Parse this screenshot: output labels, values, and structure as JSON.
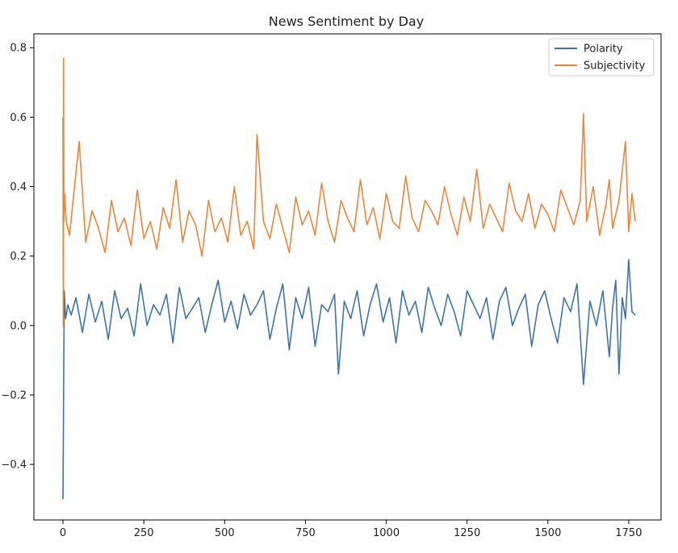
{
  "chart_data": {
    "type": "line",
    "title": "News Sentiment by Day",
    "xlabel": "",
    "ylabel": "",
    "xlim": [
      -90,
      1850
    ],
    "ylim": [
      -0.56,
      0.84
    ],
    "x_ticks": [
      0,
      250,
      500,
      750,
      1000,
      1250,
      1500,
      1750
    ],
    "y_ticks": [
      -0.4,
      -0.2,
      0.0,
      0.2,
      0.4,
      0.6,
      0.8
    ],
    "x_tick_labels": [
      "0",
      "250",
      "500",
      "750",
      "1000",
      "1250",
      "1500",
      "1750"
    ],
    "y_tick_labels": [
      "−0.4",
      "−0.2",
      "0.0",
      "0.2",
      "0.4",
      "0.6",
      "0.8"
    ],
    "grid": false,
    "legend_position": "top-right",
    "series": [
      {
        "name": "Polarity",
        "color": "#3b75af",
        "x": [
          0,
          2,
          4,
          8,
          15,
          25,
          40,
          60,
          80,
          100,
          120,
          140,
          160,
          180,
          200,
          220,
          240,
          260,
          280,
          300,
          320,
          340,
          360,
          380,
          400,
          420,
          440,
          460,
          480,
          500,
          520,
          540,
          560,
          580,
          600,
          620,
          640,
          660,
          680,
          700,
          720,
          740,
          760,
          780,
          800,
          820,
          840,
          852,
          870,
          890,
          910,
          930,
          950,
          970,
          990,
          1010,
          1030,
          1050,
          1070,
          1090,
          1110,
          1130,
          1150,
          1170,
          1190,
          1210,
          1230,
          1250,
          1270,
          1290,
          1310,
          1330,
          1350,
          1370,
          1390,
          1410,
          1430,
          1450,
          1470,
          1490,
          1510,
          1530,
          1550,
          1570,
          1590,
          1610,
          1630,
          1650,
          1670,
          1690,
          1700,
          1710,
          1720,
          1730,
          1740,
          1750,
          1760,
          1770
        ],
        "values": [
          -0.5,
          -0.2,
          0.1,
          0.02,
          0.06,
          0.03,
          0.08,
          -0.02,
          0.09,
          0.01,
          0.07,
          -0.04,
          0.1,
          0.02,
          0.05,
          -0.03,
          0.12,
          0.0,
          0.06,
          0.03,
          0.09,
          -0.05,
          0.11,
          0.02,
          0.05,
          0.08,
          -0.02,
          0.06,
          0.13,
          0.01,
          0.07,
          -0.01,
          0.09,
          0.03,
          0.06,
          0.1,
          -0.04,
          0.05,
          0.12,
          -0.07,
          0.08,
          0.02,
          0.11,
          -0.06,
          0.06,
          0.04,
          0.09,
          -0.14,
          0.07,
          0.02,
          0.1,
          -0.03,
          0.06,
          0.12,
          0.01,
          0.08,
          -0.05,
          0.1,
          0.03,
          0.07,
          -0.02,
          0.11,
          0.05,
          0.0,
          0.09,
          0.04,
          -0.03,
          0.1,
          0.06,
          0.02,
          0.08,
          -0.04,
          0.07,
          0.11,
          0.0,
          0.05,
          0.09,
          -0.06,
          0.06,
          0.1,
          0.02,
          -0.05,
          0.08,
          0.04,
          0.12,
          -0.17,
          0.07,
          0.0,
          0.1,
          -0.09,
          0.05,
          0.13,
          -0.14,
          0.08,
          0.02,
          0.19,
          0.04,
          0.03
        ]
      },
      {
        "name": "Subjectivity",
        "color": "#ef8636",
        "x": [
          0,
          1,
          2,
          3,
          5,
          10,
          20,
          30,
          50,
          70,
          90,
          110,
          130,
          150,
          170,
          190,
          210,
          230,
          250,
          270,
          290,
          310,
          330,
          350,
          370,
          390,
          410,
          430,
          450,
          470,
          490,
          510,
          530,
          550,
          570,
          590,
          600,
          620,
          640,
          660,
          680,
          700,
          720,
          740,
          760,
          780,
          800,
          820,
          840,
          860,
          880,
          900,
          920,
          940,
          960,
          980,
          1000,
          1020,
          1040,
          1060,
          1080,
          1100,
          1120,
          1140,
          1160,
          1180,
          1200,
          1220,
          1240,
          1260,
          1280,
          1300,
          1320,
          1340,
          1360,
          1380,
          1400,
          1420,
          1440,
          1460,
          1480,
          1500,
          1520,
          1540,
          1560,
          1580,
          1600,
          1610,
          1620,
          1640,
          1660,
          1680,
          1690,
          1700,
          1720,
          1740,
          1750,
          1760,
          1770
        ],
        "values": [
          0.6,
          0.0,
          0.77,
          0.3,
          0.38,
          0.3,
          0.26,
          0.35,
          0.53,
          0.24,
          0.33,
          0.28,
          0.21,
          0.36,
          0.27,
          0.31,
          0.23,
          0.39,
          0.25,
          0.3,
          0.22,
          0.34,
          0.28,
          0.42,
          0.24,
          0.33,
          0.29,
          0.2,
          0.36,
          0.27,
          0.31,
          0.24,
          0.4,
          0.26,
          0.3,
          0.22,
          0.55,
          0.3,
          0.25,
          0.35,
          0.28,
          0.21,
          0.37,
          0.29,
          0.33,
          0.26,
          0.41,
          0.3,
          0.24,
          0.36,
          0.31,
          0.27,
          0.42,
          0.29,
          0.34,
          0.25,
          0.38,
          0.3,
          0.28,
          0.43,
          0.31,
          0.27,
          0.36,
          0.33,
          0.29,
          0.4,
          0.32,
          0.26,
          0.37,
          0.3,
          0.45,
          0.28,
          0.35,
          0.31,
          0.27,
          0.41,
          0.33,
          0.3,
          0.38,
          0.28,
          0.35,
          0.32,
          0.27,
          0.39,
          0.34,
          0.29,
          0.36,
          0.61,
          0.3,
          0.4,
          0.26,
          0.35,
          0.42,
          0.28,
          0.36,
          0.53,
          0.27,
          0.38,
          0.3
        ]
      }
    ]
  }
}
